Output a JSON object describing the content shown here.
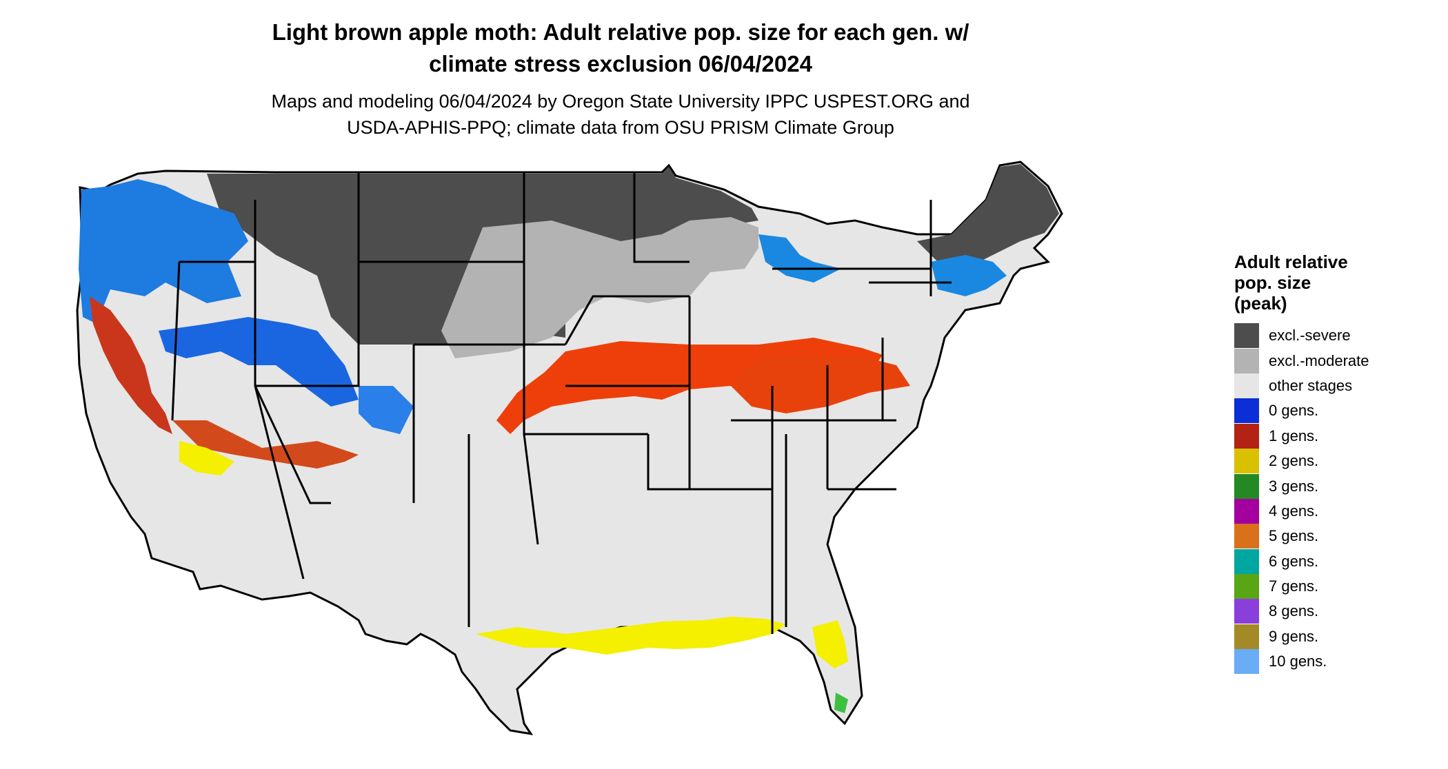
{
  "header": {
    "title": "Light brown apple moth: Adult relative pop. size for each gen. w/\nclimate stress exclusion 06/04/2024",
    "subtitle": "Maps and modeling 06/04/2024 by Oregon State University IPPC USPEST.ORG and\nUSDA-APHIS-PPQ; climate data from OSU PRISM Climate Group"
  },
  "map": {
    "region": "Contiguous United States",
    "colors": {
      "background": "#ffffff",
      "land_default": "#e6e6e6",
      "border": "#000000"
    }
  },
  "legend": {
    "title": "Adult relative\npop. size\n(peak)",
    "items": [
      {
        "label": "excl.-severe",
        "color": "#4d4d4d"
      },
      {
        "label": "excl.-moderate",
        "color": "#b3b3b3"
      },
      {
        "label": "other stages",
        "color": "#e6e6e6"
      },
      {
        "label": "0 gens.",
        "color": "#0a2fd6"
      },
      {
        "label": "1 gens.",
        "color": "#b22313"
      },
      {
        "label": "2 gens.",
        "color": "#d9c000"
      },
      {
        "label": "3 gens.",
        "color": "#238a23"
      },
      {
        "label": "4 gens.",
        "color": "#a3009f"
      },
      {
        "label": "5 gens.",
        "color": "#d9711a"
      },
      {
        "label": "6 gens.",
        "color": "#00a6a0"
      },
      {
        "label": "7 gens.",
        "color": "#5aa516"
      },
      {
        "label": "8 gens.",
        "color": "#8a3fdb"
      },
      {
        "label": "9 gens.",
        "color": "#a38a26"
      },
      {
        "label": "10 gens.",
        "color": "#6aacf5"
      }
    ]
  }
}
